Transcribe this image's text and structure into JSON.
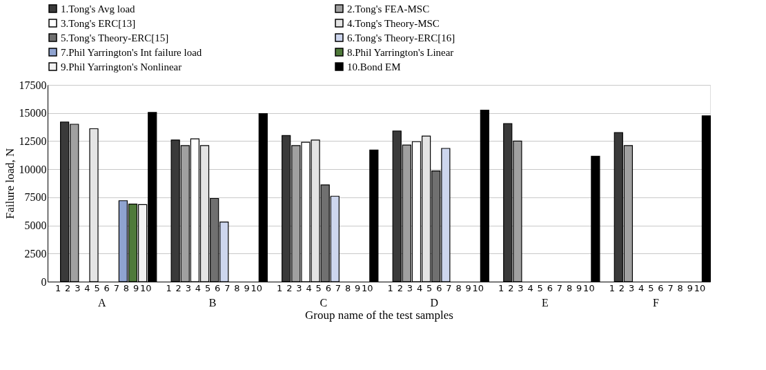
{
  "chart_data": {
    "type": "bar",
    "xlabel": "Group name of the test samples",
    "ylabel": "Failure load, N",
    "categories": [
      "A",
      "B",
      "C",
      "D",
      "E",
      "F"
    ],
    "annotations": [
      "1",
      "2",
      "3",
      "4",
      "5",
      "6",
      "7",
      "8",
      "9",
      "10"
    ],
    "series": [
      {
        "name": "1.Tong's Avg load",
        "color": "#3a3a3a",
        "values": [
          14200,
          12600,
          13000,
          13400,
          14050,
          13250
        ]
      },
      {
        "name": "2.Tong's FEA-MSC",
        "color": "#a0a0a0",
        "values": [
          14000,
          12100,
          12100,
          12150,
          12500,
          12100
        ]
      },
      {
        "name": "3.Tong's ERC[13]",
        "color": "#ffffff",
        "values": [
          null,
          12700,
          12400,
          12450,
          null,
          null
        ]
      },
      {
        "name": "4.Tong's Theory-MSC",
        "color": "#e4e4e4",
        "values": [
          13600,
          12100,
          12600,
          12950,
          null,
          null
        ]
      },
      {
        "name": "5.Tong's Theory-ERC[15]",
        "color": "#707070",
        "values": [
          null,
          7400,
          8600,
          9850,
          null,
          null
        ]
      },
      {
        "name": "6.Tong's Theory-ERC[16]",
        "color": "#cdd6ee",
        "values": [
          null,
          5300,
          7600,
          11850,
          null,
          null
        ]
      },
      {
        "name": "7.Phil Yarrington's Int failure load",
        "color": "#8fa3d0",
        "values": [
          7200,
          null,
          null,
          null,
          null,
          null
        ]
      },
      {
        "name": "8.Phil Yarrington's Linear",
        "color": "#4f7a3a",
        "values": [
          6900,
          null,
          null,
          null,
          null,
          null
        ]
      },
      {
        "name": "9.Phil Yarrington's Nonlinear",
        "color": "#f2f2f2",
        "values": [
          6850,
          null,
          null,
          null,
          null,
          null
        ]
      },
      {
        "name": "10.Bond EM",
        "color": "#000000",
        "values": [
          15050,
          14950,
          11700,
          15250,
          11150,
          14750
        ]
      }
    ],
    "ylim": [
      0,
      17500
    ],
    "yticks": [
      0,
      2500,
      5000,
      7500,
      10000,
      12500,
      15000,
      17500
    ],
    "grid": "y",
    "legend": "top"
  }
}
